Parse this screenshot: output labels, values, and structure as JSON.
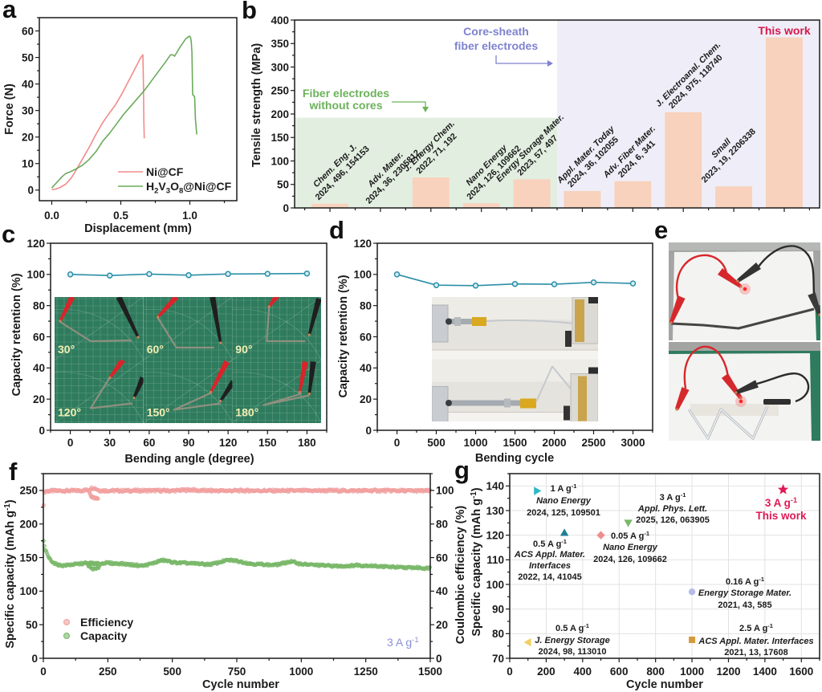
{
  "panels": {
    "a": {
      "letter": "a"
    },
    "b": {
      "letter": "b"
    },
    "c": {
      "letter": "c"
    },
    "d": {
      "letter": "d"
    },
    "e": {
      "letter": "e"
    },
    "f": {
      "letter": "f"
    },
    "g": {
      "letter": "g"
    }
  },
  "chart_data": [
    {
      "panel": "a",
      "type": "line",
      "title": "",
      "xlabel": "Displacement (mm)",
      "ylabel": "Force (N)",
      "xlim": [
        -0.09,
        1.34
      ],
      "ylim": [
        -4,
        65
      ],
      "xticks": [
        0,
        0.5,
        1.0
      ],
      "xtick_labels": [
        "0.0",
        "0.5",
        "1.0"
      ],
      "yticks": [
        0,
        10,
        20,
        30,
        40,
        50,
        60
      ],
      "grid": false,
      "legend": {
        "position": "bottom-right"
      },
      "series": [
        {
          "name": "Ni@CF",
          "label_parts": [
            [
              "Ni@CF",
              ""
            ]
          ],
          "color": "#f28b8b",
          "x": [
            0,
            0.03,
            0.06,
            0.1,
            0.14,
            0.18,
            0.22,
            0.27,
            0.32,
            0.37,
            0.41,
            0.46,
            0.51,
            0.56,
            0.61,
            0.645,
            0.66,
            0.664,
            0.667,
            0.67
          ],
          "y": [
            0.2,
            0.4,
            1.0,
            2.2,
            4.5,
            7.8,
            11.5,
            16.0,
            21.0,
            25.5,
            28.5,
            32.0,
            36.5,
            41.5,
            46.5,
            50.0,
            51.0,
            40.0,
            26.0,
            19.5
          ]
        },
        {
          "name": "H2V3O8@Ni@CF",
          "label_parts": [
            [
              "H",
              ""
            ],
            [
              "2",
              "sub"
            ],
            [
              "V",
              ""
            ],
            [
              "3",
              "sub"
            ],
            [
              "O",
              ""
            ],
            [
              "8",
              "sub"
            ],
            [
              "@Ni@CF",
              ""
            ]
          ],
          "color": "#6aab5a",
          "x": [
            0,
            0.03,
            0.07,
            0.1,
            0.13,
            0.17,
            0.22,
            0.27,
            0.32,
            0.37,
            0.42,
            0.47,
            0.52,
            0.57,
            0.62,
            0.67,
            0.72,
            0.77,
            0.82,
            0.86,
            0.875,
            0.89,
            0.93,
            0.97,
            0.99,
            1.0,
            1.005,
            1.01,
            1.015,
            1.02,
            1.03,
            1.035,
            1.04,
            1.05
          ],
          "y": [
            0.8,
            2.5,
            4.8,
            6.2,
            6.8,
            7.8,
            9.3,
            11.5,
            14.5,
            18.5,
            21.5,
            25.0,
            28.5,
            31.5,
            34.5,
            37.5,
            41.0,
            44.5,
            48.0,
            51.0,
            51.0,
            50.5,
            54.0,
            57.0,
            57.8,
            58.0,
            57.5,
            56.0,
            52.0,
            36.0,
            35.5,
            35.0,
            27.0,
            21.0
          ]
        }
      ]
    },
    {
      "panel": "b",
      "type": "bar",
      "title": "",
      "xlabel": "",
      "ylabel": "Tensile strength (MPa)",
      "xlim": [
        -0.7,
        9.7
      ],
      "ylim": [
        0,
        400
      ],
      "yticks": [
        0,
        50,
        100,
        150,
        200,
        250,
        300,
        350,
        400
      ],
      "grid": false,
      "categories": [
        {
          "journal": "Chem. Eng. J.",
          "citation": "2024, 496, 154153"
        },
        {
          "journal": "Adv. Mater.",
          "citation": "2024, 36, 2305812"
        },
        {
          "journal": "J. Energy Chem.",
          "citation": "2022, 71, 192"
        },
        {
          "journal": "Nano Energy",
          "citation": "2024, 126, 109662"
        },
        {
          "journal": "Energy Storage Mater.",
          "citation": "2023, 57, 497"
        },
        {
          "journal": "Appl. Mater. Today",
          "citation": "2024, 36, 102055"
        },
        {
          "journal": "Adv. Fiber Mater.",
          "citation": "2024, 6, 341"
        },
        {
          "journal": "J. Electroanal. Chem.",
          "citation": "2024, 975, 118740"
        },
        {
          "journal": "Small",
          "citation": "2023, 19, 2206338"
        },
        {
          "journal": "This work",
          "citation": ""
        }
      ],
      "values": [
        9,
        1,
        65,
        10,
        61,
        36,
        57,
        204,
        46,
        363
      ],
      "bar_color": "#f8d2bd",
      "regions": [
        {
          "label_lines": [
            "Fiber electrodes",
            "without cores"
          ],
          "from": -0.7,
          "to": 4.5,
          "ymax": 192,
          "fill": "#e2efe0",
          "text_color": "#6cb25b"
        },
        {
          "label_lines": [
            "Core-sheath",
            "fiber electrodes"
          ],
          "from": 4.5,
          "to": 9.7,
          "ymax": 400,
          "fill": "#efeef8",
          "text_color": "#7f82cf"
        }
      ],
      "highlight": {
        "index": 9,
        "label": "This work",
        "color": "#d8194c"
      }
    },
    {
      "panel": "c",
      "type": "line",
      "title": "",
      "xlabel": "Bending angle (degree)",
      "ylabel": "Capacity retention (%)",
      "xlim": [
        -15,
        195
      ],
      "ylim": [
        0,
        120
      ],
      "xticks": [
        0,
        30,
        60,
        90,
        120,
        150,
        180
      ],
      "yticks": [
        0,
        20,
        40,
        60,
        80,
        100,
        120
      ],
      "grid": false,
      "series": [
        {
          "name": "Capacity retention",
          "color": "#2b8fa7",
          "marker": "circle",
          "x": [
            0,
            30,
            60,
            90,
            120,
            150,
            180
          ],
          "y": [
            100,
            99.3,
            100.2,
            99.5,
            100.3,
            100.4,
            100.6
          ]
        }
      ],
      "inset_labels": [
        "30°",
        "60°",
        "90°",
        "120°",
        "150°",
        "180°"
      ]
    },
    {
      "panel": "d",
      "type": "line",
      "title": "",
      "xlabel": "Bending cycle",
      "ylabel": "Capacity retention (%)",
      "xlim": [
        -250,
        3250
      ],
      "ylim": [
        0,
        120
      ],
      "xticks": [
        0,
        500,
        1000,
        1500,
        2000,
        2500,
        3000
      ],
      "yticks": [
        0,
        20,
        40,
        60,
        80,
        100,
        120
      ],
      "grid": false,
      "series": [
        {
          "name": "Capacity retention",
          "color": "#2b8fa7",
          "marker": "circle",
          "x": [
            0,
            500,
            1000,
            1500,
            2000,
            2500,
            3000
          ],
          "y": [
            100,
            93.1,
            92.8,
            93.9,
            93.7,
            94.9,
            94.2
          ]
        }
      ]
    },
    {
      "panel": "f",
      "type": "scatter",
      "title": "",
      "xlabel": "Cycle number",
      "ylabel": "Specific capacity (mAh g-1)",
      "ylabel_parts": [
        [
          "Specific capacity (mAh g",
          ""
        ],
        [
          "-1",
          "sup"
        ],
        [
          ")",
          ""
        ]
      ],
      "y2label": "Coulombic efficiency (%)",
      "xlim": [
        0,
        1500
      ],
      "ylim": [
        0,
        275
      ],
      "y2lim": [
        0,
        110
      ],
      "xticks": [
        0,
        250,
        500,
        750,
        1000,
        1250,
        1500
      ],
      "yticks": [
        0,
        50,
        100,
        150,
        200,
        250
      ],
      "y2ticks": [
        0,
        20,
        40,
        60,
        80,
        100
      ],
      "grid": false,
      "legend": {
        "position": "bottom-left"
      },
      "annotation": {
        "text": "3 A g-1",
        "parts": [
          [
            "3 A g",
            ""
          ],
          [
            "-1",
            "sup"
          ]
        ],
        "color": "#8c8fd5",
        "position": "bottom-right"
      },
      "series": [
        {
          "name": "Efficiency",
          "axis": "right",
          "unit": "%",
          "color": "#f2a0a0",
          "segments": [
            {
              "x": [
                1,
                2,
                4,
                8,
                15,
                30,
                60,
                100,
                150,
                175,
                180,
                190,
                200,
                210,
                220,
                300,
                400,
                500,
                575,
                600,
                700,
                800,
                900,
                1000,
                1100,
                1200,
                1300,
                1400,
                1500
              ],
              "y": [
                91.8,
                97.5,
                98.8,
                99.4,
                99.6,
                99.7,
                99.8,
                99.8,
                99.9,
                100.4,
                101.0,
                101.5,
                101.3,
                100.5,
                99.9,
                99.8,
                99.9,
                99.8,
                100.4,
                99.9,
                99.8,
                99.9,
                99.8,
                99.8,
                99.9,
                99.8,
                99.9,
                99.8,
                99.7
              ]
            },
            {
              "x": [
                178,
                185,
                192,
                200,
                208,
                212
              ],
              "y": [
                99.0,
                96.8,
                95.5,
                95.2,
                95.1,
                95.6
              ]
            }
          ]
        },
        {
          "name": "Capacity",
          "axis": "left",
          "unit": "mAh g-1",
          "color": "#79b869",
          "segments": [
            {
              "x": [
                1,
                3,
                6,
                10,
                15,
                20,
                25,
                30,
                40,
                50,
                60,
                75,
                100,
                125,
                150,
                165,
                175,
                185,
                195,
                205,
                212,
                220,
                235,
                250,
                275,
                300,
                325,
                350,
                375,
                390,
                410,
                430,
                450,
                465,
                480,
                500,
                525,
                550,
                575,
                600,
                625,
                650,
                675,
                700,
                715,
                730,
                750,
                775,
                800,
                825,
                850,
                875,
                900,
                925,
                945,
                960,
                975,
                990,
                1010,
                1050,
                1100,
                1150,
                1200,
                1215,
                1230,
                1260,
                1300,
                1350,
                1400,
                1450,
                1480,
                1500
              ],
              "y": [
                174,
                168,
                163,
                159,
                155,
                151,
                148,
                146,
                142,
                140,
                139,
                138,
                139,
                140,
                141,
                142,
                138,
                134,
                133,
                133,
                134,
                140,
                142,
                142,
                141,
                141,
                140,
                139,
                138,
                138,
                140,
                142,
                145,
                146,
                145,
                143,
                142,
                142,
                141,
                141,
                140,
                140,
                142,
                145,
                146,
                146,
                145,
                143,
                141,
                140,
                140,
                139,
                139,
                141,
                143,
                144,
                143,
                141,
                140,
                139,
                138,
                137,
                138,
                139,
                138,
                138,
                137,
                136,
                135,
                135,
                134,
                135
              ]
            },
            {
              "x": [
                170,
                180,
                190,
                200,
                210,
                215
              ],
              "y": [
                142,
                142,
                142,
                141,
                141,
                141
              ]
            }
          ]
        }
      ]
    },
    {
      "panel": "g",
      "type": "scatter",
      "title": "",
      "xlabel": "Cycle number",
      "ylabel": "Specific capacity (mAh g-1)",
      "ylabel_parts": [
        [
          "Specific capacity (mAh g",
          ""
        ],
        [
          "-1",
          "sup"
        ],
        [
          ")",
          ""
        ]
      ],
      "xlim": [
        0,
        1700
      ],
      "ylim": [
        70,
        145
      ],
      "xticks": [
        0,
        200,
        400,
        600,
        800,
        1000,
        1200,
        1400,
        1600
      ],
      "yticks": [
        70,
        80,
        90,
        100,
        110,
        120,
        130,
        140
      ],
      "grid": true,
      "points": [
        {
          "x": 150,
          "y": 138,
          "marker": "triangle-right",
          "color": "#2cb8c7",
          "rate_main": "1 A g",
          "rate_sup": "-1",
          "journal_lines": [
            "Nano Energy"
          ],
          "citation": "2024, 125, 109501"
        },
        {
          "x": 300,
          "y": 121,
          "marker": "triangle-up",
          "color": "#1f7f93",
          "rate_main": "0.5 A g",
          "rate_sup": "-1",
          "journal_lines": [
            "ACS Appl. Mater.",
            "Interfaces"
          ],
          "citation": "2022, 14, 41045"
        },
        {
          "x": 500,
          "y": 120,
          "marker": "diamond",
          "color": "#f08d8d",
          "rate_main": "0.05 A g",
          "rate_sup": "-1",
          "journal_lines": [
            "Nano Energy"
          ],
          "citation": "2024, 126, 109662"
        },
        {
          "x": 650,
          "y": 125,
          "marker": "triangle-down",
          "color": "#79b869",
          "rate_main": "3 A g",
          "rate_sup": "-1",
          "journal_lines": [
            "Appl. Phys. Lett."
          ],
          "citation": "2025, 126, 063905"
        },
        {
          "x": 1000,
          "y": 97,
          "marker": "circle",
          "color": "#b8bbe8",
          "rate_main": "0.16 A g",
          "rate_sup": "-1",
          "journal_lines": [
            "Energy Storage Mater."
          ],
          "citation": "2021, 43, 585"
        },
        {
          "x": 100,
          "y": 76.5,
          "marker": "triangle-left",
          "color": "#f2cf64",
          "rate_main": "0.5 A g",
          "rate_sup": "-1",
          "journal_lines": [
            "J. Energy Storage"
          ],
          "citation": "2024, 98, 113010"
        },
        {
          "x": 1000,
          "y": 77.5,
          "marker": "square",
          "color": "#d49a3a",
          "rate_main": "2.5 A g",
          "rate_sup": "-1",
          "journal_lines": [
            "ACS Appl. Mater. Interfaces"
          ],
          "citation": "2021, 13, 17608"
        },
        {
          "x": 1500,
          "y": 138.5,
          "marker": "star",
          "color": "#de1a55",
          "rate_main": "3 A g",
          "rate_sup": "-1",
          "label": "This work",
          "highlight": true
        }
      ]
    }
  ]
}
